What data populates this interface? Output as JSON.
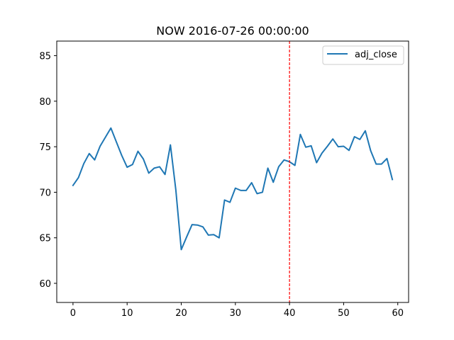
{
  "chart_data": {
    "type": "line",
    "title": "NOW 2016-07-26 00:00:00",
    "xlabel": "",
    "ylabel": "",
    "xlim": [
      -3,
      62
    ],
    "ylim": [
      57.9,
      86.6
    ],
    "x_ticks": [
      0,
      10,
      20,
      30,
      40,
      50,
      60
    ],
    "y_ticks": [
      60,
      65,
      70,
      75,
      80,
      85
    ],
    "grid": false,
    "legend": {
      "position": "top-right",
      "entries": [
        "adj_close"
      ]
    },
    "series": [
      {
        "name": "adj_close",
        "color": "#1f77b4",
        "x": [
          0,
          1,
          2,
          3,
          4,
          5,
          6,
          7,
          8,
          9,
          10,
          11,
          12,
          13,
          14,
          15,
          16,
          17,
          18,
          19,
          20,
          21,
          22,
          23,
          24,
          25,
          26,
          27,
          28,
          29,
          30,
          31,
          32,
          33,
          34,
          35,
          36,
          37,
          38,
          39,
          40,
          41,
          42,
          43,
          44,
          45,
          46,
          47,
          48,
          49,
          50,
          51,
          52,
          53,
          54,
          55,
          56,
          57,
          58,
          59
        ],
        "values": [
          70.75,
          71.6,
          73.15,
          74.25,
          73.55,
          75.05,
          76.05,
          77.05,
          75.55,
          74.05,
          72.75,
          73.05,
          74.5,
          73.65,
          72.1,
          72.65,
          72.8,
          71.95,
          75.2,
          70.25,
          63.7,
          65.1,
          66.45,
          66.4,
          66.2,
          65.3,
          65.35,
          65.0,
          69.15,
          68.9,
          70.45,
          70.2,
          70.2,
          71.05,
          69.85,
          70.0,
          72.65,
          71.1,
          72.8,
          73.55,
          73.35,
          72.95,
          76.35,
          74.95,
          75.1,
          73.25,
          74.3,
          75.05,
          75.85,
          75.0,
          75.05,
          74.6,
          76.1,
          75.8,
          76.75,
          74.55,
          73.1,
          73.1,
          73.7,
          71.4
        ]
      }
    ],
    "vline": {
      "x": 40,
      "color": "#ff0000",
      "style": "dashed"
    }
  }
}
